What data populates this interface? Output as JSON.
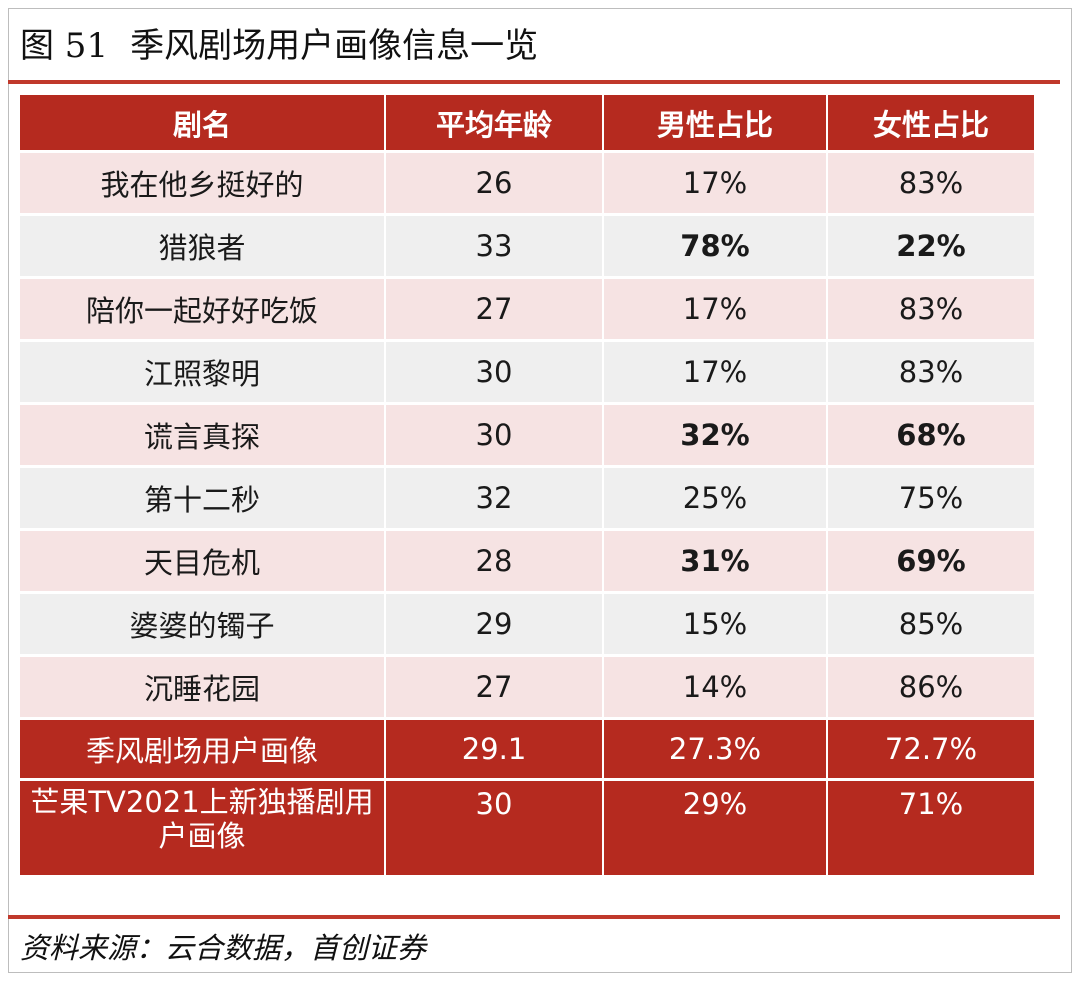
{
  "figure": {
    "number": "图  51",
    "title": "季风剧场用户画像信息一览"
  },
  "table": {
    "headers": [
      "剧名",
      "平均年龄",
      "男性占比",
      "女性占比"
    ],
    "rows": [
      {
        "name": "我在他乡挺好的",
        "age": "26",
        "male": "17%",
        "female": "83%",
        "bold": false
      },
      {
        "name": "猎狼者",
        "age": "33",
        "male": "78%",
        "female": "22%",
        "bold": true
      },
      {
        "name": "陪你一起好好吃饭",
        "age": "27",
        "male": "17%",
        "female": "83%",
        "bold": false
      },
      {
        "name": "江照黎明",
        "age": "30",
        "male": "17%",
        "female": "83%",
        "bold": false
      },
      {
        "name": "谎言真探",
        "age": "30",
        "male": "32%",
        "female": "68%",
        "bold": true
      },
      {
        "name": "第十二秒",
        "age": "32",
        "male": "25%",
        "female": "75%",
        "bold": false
      },
      {
        "name": "天目危机",
        "age": "28",
        "male": "31%",
        "female": "69%",
        "bold": true
      },
      {
        "name": "婆婆的镯子",
        "age": "29",
        "male": "15%",
        "female": "85%",
        "bold": false
      },
      {
        "name": "沉睡花园",
        "age": "27",
        "male": "14%",
        "female": "86%",
        "bold": false
      }
    ],
    "summary": [
      {
        "name": "季风剧场用户画像",
        "age": "29.1",
        "male": "27.3%",
        "female": "72.7%"
      },
      {
        "name": "芒果TV2021上新独播剧用户画像",
        "age": "30",
        "male": "29%",
        "female": "71%"
      }
    ]
  },
  "source": "资料来源：云合数据，首创证券",
  "colors": {
    "header_red": "#b52a1f",
    "rule_red": "#c0392b",
    "row_pink": "#f6e3e3",
    "row_gray": "#efefef"
  }
}
